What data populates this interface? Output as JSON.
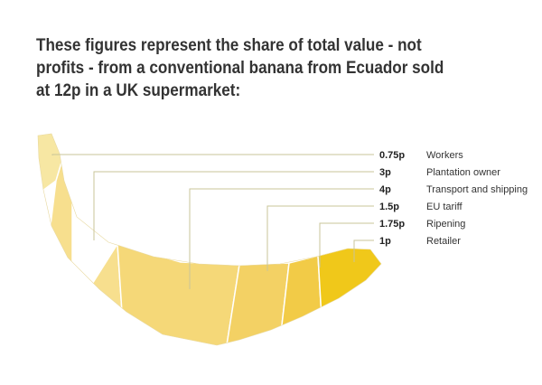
{
  "title": "These figures represent the share of total value - not profits - from a conventional banana from Ecuador sold at 12p in a UK supermarket:",
  "chart_data": {
    "type": "bar",
    "categories": [
      "Workers",
      "Plantation owner",
      "Transport and shipping",
      "EU tariff",
      "Ripening",
      "Retailer"
    ],
    "value_labels": [
      "0.75p",
      "3p",
      "4p",
      "1.5p",
      "1.75p",
      "1p"
    ],
    "values": [
      0.75,
      3,
      4,
      1.5,
      1.75,
      1
    ],
    "unit": "p",
    "total": 12,
    "colors": [
      "#f7e7a3",
      "#f7df8e",
      "#f5d878",
      "#f3d164",
      "#f2cb47",
      "#f0c81a"
    ]
  }
}
